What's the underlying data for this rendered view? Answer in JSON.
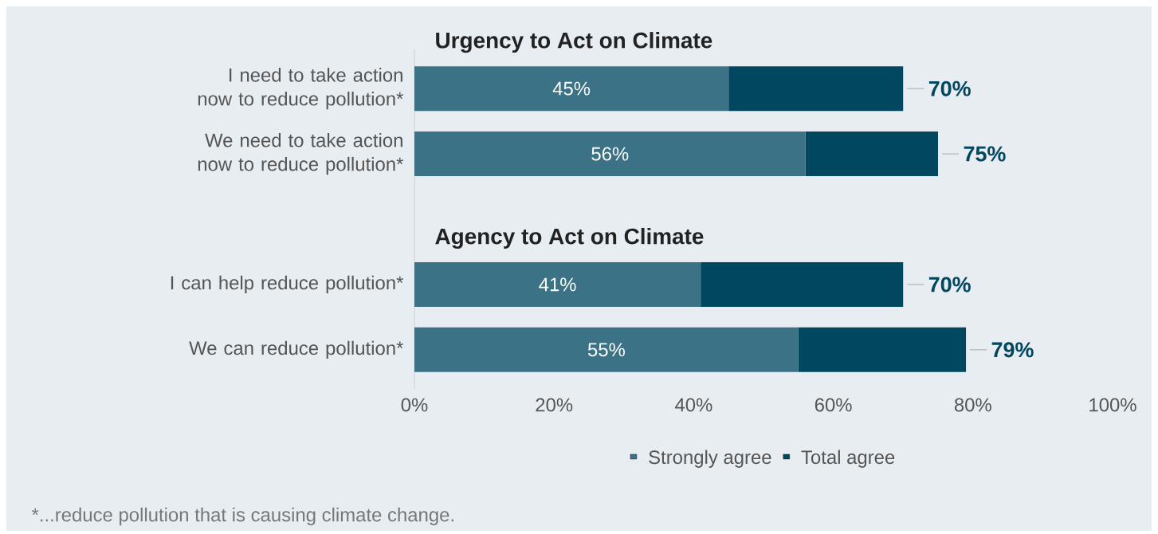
{
  "chart_data": {
    "type": "bar",
    "orientation": "horizontal",
    "stacked": true,
    "categories": [
      "I need to take action now to reduce pollution*",
      "We need to take action now to reduce pollution*",
      null,
      "I can help reduce pollution*",
      "We can reduce pollution*"
    ],
    "series": [
      {
        "name": "Strongly agree",
        "color": "#3b7285",
        "values": [
          45,
          56,
          null,
          41,
          55
        ],
        "value_labels": [
          "45%",
          "56%",
          null,
          "41%",
          "55%"
        ]
      },
      {
        "name": "Total agree",
        "color": "#00475f",
        "values": [
          25,
          19,
          null,
          29,
          24
        ]
      }
    ],
    "totals": [
      "70%",
      "75%",
      null,
      "70%",
      "79%"
    ],
    "xlim": [
      0,
      100
    ],
    "xticks": [
      {
        "value": 0,
        "label": "0%"
      },
      {
        "value": 20,
        "label": "20%"
      },
      {
        "value": 40,
        "label": "40%"
      },
      {
        "value": 60,
        "label": "60%"
      },
      {
        "value": 80,
        "label": "80%"
      },
      {
        "value": 100,
        "label": "100%"
      }
    ],
    "legend": "bottom",
    "annotations": [
      "Urgency to Act on Climate",
      "Agency to Act on Climate",
      "*...reduce pollution that is causing climate change."
    ]
  }
}
